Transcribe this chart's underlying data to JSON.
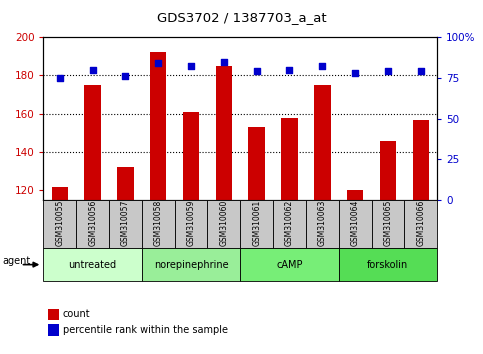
{
  "title": "GDS3702 / 1387703_a_at",
  "samples": [
    "GSM310055",
    "GSM310056",
    "GSM310057",
    "GSM310058",
    "GSM310059",
    "GSM310060",
    "GSM310061",
    "GSM310062",
    "GSM310063",
    "GSM310064",
    "GSM310065",
    "GSM310066"
  ],
  "count_values": [
    122,
    175,
    132,
    192,
    161,
    185,
    153,
    158,
    175,
    120,
    146,
    157
  ],
  "percentile_values": [
    75,
    80,
    76,
    84,
    82,
    85,
    79,
    80,
    82,
    78,
    79,
    79
  ],
  "ylim_left": [
    115,
    200
  ],
  "ylim_right": [
    0,
    100
  ],
  "yticks_left": [
    120,
    140,
    160,
    180,
    200
  ],
  "yticks_right": [
    0,
    25,
    50,
    75,
    100
  ],
  "hlines": [
    140,
    160,
    180
  ],
  "bar_color": "#cc0000",
  "dot_color": "#0000cc",
  "agent_groups": [
    {
      "label": "untreated",
      "start": 0,
      "end": 3,
      "color": "#aaffaa"
    },
    {
      "label": "norepinephrine",
      "start": 3,
      "end": 6,
      "color": "#77ee77"
    },
    {
      "label": "cAMP",
      "start": 6,
      "end": 9,
      "color": "#55dd55"
    },
    {
      "label": "forskolin",
      "start": 9,
      "end": 12,
      "color": "#44cc44"
    }
  ],
  "agent_bg_colors": [
    "#ccffcc",
    "#88ee88",
    "#66dd66",
    "#44cc44"
  ],
  "sample_bg_color": "#c8c8c8",
  "legend_count_color": "#cc0000",
  "legend_pct_color": "#0000cc",
  "fig_width": 4.83,
  "fig_height": 3.54,
  "dpi": 100
}
